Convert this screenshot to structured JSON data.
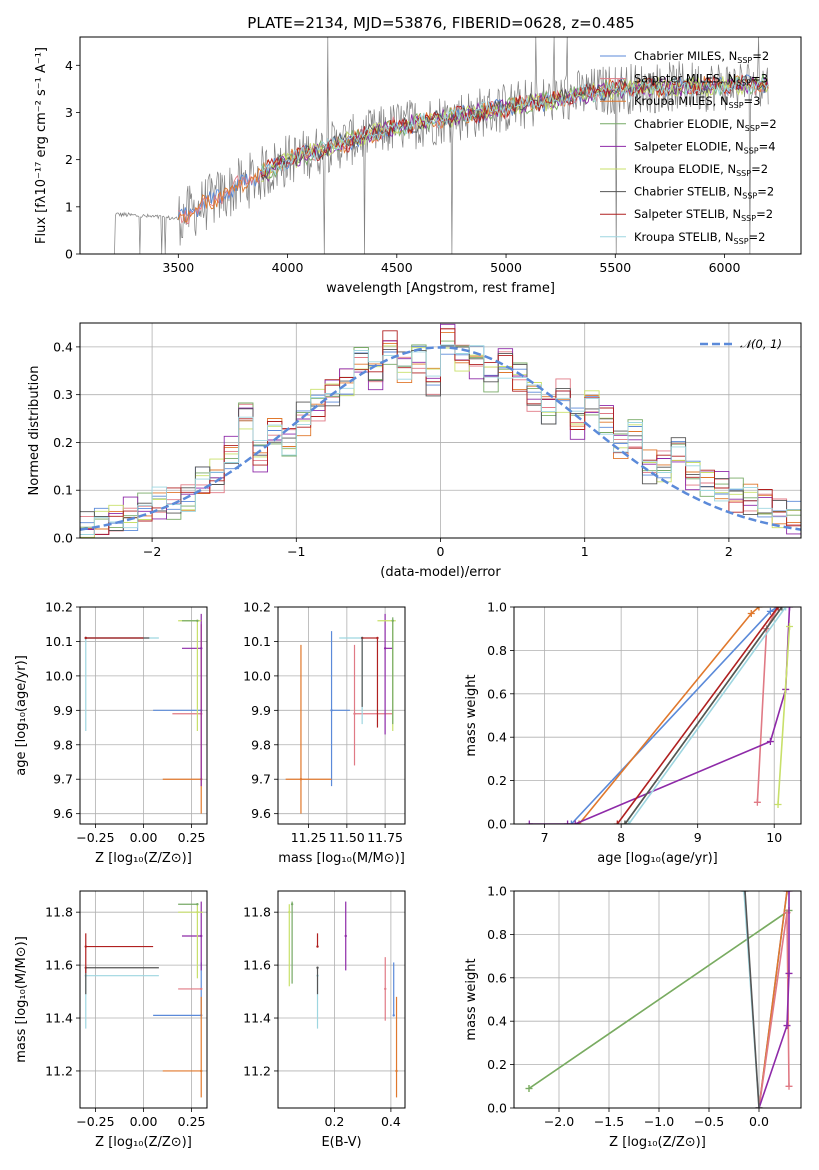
{
  "figure_title": "PLATE=2134, MJD=53876, FIBERID=0628, z=0.485",
  "series": [
    {
      "name": "Chabrier MILES",
      "nssp": "2",
      "color": "#5b8ad9"
    },
    {
      "name": "Salpeter MILES",
      "nssp": "3",
      "color": "#e07a85"
    },
    {
      "name": "Kroupa MILES",
      "nssp": "3",
      "color": "#e0782c"
    },
    {
      "name": "Chabrier ELODIE",
      "nssp": "2",
      "color": "#77aa66"
    },
    {
      "name": "Salpeter ELODIE",
      "nssp": "4",
      "color": "#8e2aa8"
    },
    {
      "name": "Kroupa ELODIE",
      "nssp": "2",
      "color": "#c8e06a"
    },
    {
      "name": "Chabrier STELIB",
      "nssp": "2",
      "color": "#555555"
    },
    {
      "name": "Salpeter STELIB",
      "nssp": "2",
      "color": "#b02020"
    },
    {
      "name": "Kroupa STELIB",
      "nssp": "2",
      "color": "#9ed6e0"
    }
  ],
  "panels": {
    "spectrum": {
      "xlabel": "wavelength [Angstrom, rest frame]",
      "ylabel": "Flux [fλ10⁻¹⁷ erg cm⁻² s⁻¹ A⁻¹]",
      "xticks": [
        "3500",
        "4000",
        "4500",
        "5000",
        "5500",
        "6000"
      ],
      "yticks": [
        "0",
        "1",
        "2",
        "3",
        "4"
      ]
    },
    "residual": {
      "xlabel": "(data-model)/error",
      "ylabel": "Normed distribution",
      "xticks": [
        "−2",
        "−1",
        "0",
        "1",
        "2"
      ],
      "yticks": [
        "0.0",
        "0.1",
        "0.2",
        "0.3",
        "0.4"
      ],
      "legend": "𝒩(0, 1)"
    },
    "age_z": {
      "xlabel": "Z [log₁₀(Z/Z⊙)]",
      "ylabel": "age  [log₁₀(age/yr)]",
      "xticks": [
        "−0.25",
        "0.00",
        "0.25"
      ],
      "yticks": [
        "9.6",
        "9.7",
        "9.8",
        "9.9",
        "10.0",
        "10.1",
        "10.2"
      ]
    },
    "age_mass": {
      "xlabel": "mass [log₁₀(M/M⊙)]",
      "xticks": [
        "11.25",
        "11.50",
        "11.75"
      ],
      "yticks": [
        "9.6",
        "9.7",
        "9.8",
        "9.9",
        "10.0",
        "10.1",
        "10.2"
      ]
    },
    "weight_age": {
      "xlabel": "age  [log₁₀(age/yr)]",
      "ylabel": "mass weight",
      "xticks": [
        "7",
        "8",
        "9",
        "10"
      ],
      "yticks": [
        "0.0",
        "0.2",
        "0.4",
        "0.6",
        "0.8",
        "1.0"
      ]
    },
    "mass_z": {
      "xlabel": "Z [log₁₀(Z/Z⊙)]",
      "ylabel": "mass [log₁₀(M/M⊙)]",
      "xticks": [
        "−0.25",
        "0.00",
        "0.25"
      ],
      "yticks": [
        "11.2",
        "11.4",
        "11.6",
        "11.8"
      ]
    },
    "mass_ebv": {
      "xlabel": "E(B-V)",
      "xticks": [
        "0.2",
        "0.4"
      ],
      "yticks": [
        "11.2",
        "11.4",
        "11.6",
        "11.8"
      ]
    },
    "weight_z": {
      "xlabel": "Z [log₁₀(Z/Z⊙)]",
      "ylabel": "mass weight",
      "xticks": [
        "−2.0",
        "−1.5",
        "−1.0",
        "−0.5",
        "0.0"
      ],
      "yticks": [
        "0.0",
        "0.2",
        "0.4",
        "0.6",
        "0.8",
        "1.0"
      ]
    }
  },
  "chart_data": [
    {
      "type": "line",
      "name": "spectrum",
      "title": "PLATE=2134, MJD=53876, FIBERID=0628, z=0.485",
      "xlim": [
        3050,
        6350
      ],
      "ylim": [
        0,
        4.6
      ],
      "model_trend": {
        "x": [
          3200,
          3500,
          4000,
          4500,
          5000,
          5500,
          6200
        ],
        "y": [
          0.85,
          0.75,
          2.0,
          2.7,
          3.1,
          3.5,
          3.6
        ]
      }
    },
    {
      "type": "line",
      "name": "residual",
      "xlim": [
        -2.5,
        2.5
      ],
      "ylim": [
        0,
        0.45
      ],
      "gaussian": {
        "mean": 0,
        "sigma": 1
      },
      "bin_edges": [
        -2.5,
        -2.4,
        -2.3,
        -2.2,
        -2.1,
        -2.0,
        -1.9,
        -1.8,
        -1.7,
        -1.6,
        -1.5,
        -1.4,
        -1.3,
        -1.2,
        -1.1,
        -1.0,
        -0.9,
        -0.8,
        -0.7,
        -0.6,
        -0.5,
        -0.4,
        -0.3,
        -0.2,
        -0.1,
        0.0,
        0.1,
        0.2,
        0.3,
        0.4,
        0.5,
        0.6,
        0.7,
        0.8,
        0.9,
        1.0,
        1.1,
        1.2,
        1.3,
        1.4,
        1.5,
        1.6,
        1.7,
        1.8,
        1.9,
        2.0,
        2.1,
        2.2,
        2.3,
        2.4,
        2.5
      ],
      "hist_values": [
        0.02,
        0.03,
        0.04,
        0.05,
        0.06,
        0.07,
        0.07,
        0.08,
        0.12,
        0.13,
        0.18,
        0.26,
        0.17,
        0.22,
        0.2,
        0.25,
        0.28,
        0.31,
        0.33,
        0.37,
        0.34,
        0.4,
        0.36,
        0.38,
        0.33,
        0.42,
        0.38,
        0.37,
        0.34,
        0.37,
        0.34,
        0.3,
        0.27,
        0.3,
        0.24,
        0.28,
        0.25,
        0.2,
        0.22,
        0.15,
        0.15,
        0.18,
        0.13,
        0.12,
        0.11,
        0.09,
        0.08,
        0.07,
        0.05,
        0.04
      ]
    },
    {
      "type": "scatter",
      "name": "age_vs_Z",
      "xlim": [
        -0.33,
        0.33
      ],
      "ylim": [
        9.57,
        10.2
      ],
      "points": [
        {
          "s": "Chabrier MILES",
          "x": 0.3,
          "y": 9.9,
          "xerr": [
            0.25,
            0.0
          ]
        },
        {
          "s": "Kroupa MILES",
          "x": 0.3,
          "y": 9.7,
          "xerr": [
            0.2,
            0.0
          ],
          "yerr": [
            0.1,
            0.45
          ]
        },
        {
          "s": "Salpeter MILES",
          "x": 0.3,
          "y": 9.89,
          "xerr": [
            0.15,
            0.0
          ]
        },
        {
          "s": "Salpeter ELODIE",
          "x": 0.3,
          "y": 10.08,
          "xerr": [
            0.1,
            0.0
          ],
          "yerr": [
            0.4,
            0.1
          ]
        },
        {
          "s": "Kroupa ELODIE",
          "x": 0.28,
          "y": 10.16,
          "xerr": [
            0.1,
            0.02
          ],
          "yerr": [
            0.32,
            0.0
          ]
        },
        {
          "s": "Chabrier ELODIE",
          "x": 0.28,
          "y": 10.16,
          "xerr": [
            0.08,
            0.0
          ]
        },
        {
          "s": "Kroupa STELIB",
          "x": -0.3,
          "y": 10.11,
          "xerr": [
            0.0,
            0.38
          ],
          "yerr": [
            0.27,
            0.0
          ]
        },
        {
          "s": "Chabrier STELIB",
          "x": -0.3,
          "y": 10.11,
          "xerr": [
            0.0,
            0.33
          ]
        },
        {
          "s": "Salpeter STELIB",
          "x": -0.3,
          "y": 10.11,
          "xerr": [
            0.0,
            0.3
          ]
        }
      ]
    },
    {
      "type": "scatter",
      "name": "age_vs_mass",
      "xlim": [
        11.05,
        11.88
      ],
      "ylim": [
        9.57,
        10.2
      ],
      "points": [
        {
          "s": "Chabrier MILES",
          "x": 11.4,
          "y": 9.9,
          "xerr": [
            0.0,
            0.12
          ],
          "yerr": [
            0.22,
            0.23
          ]
        },
        {
          "s": "Kroupa MILES",
          "x": 11.2,
          "y": 9.7,
          "xerr": [
            0.1,
            0.2
          ],
          "yerr": [
            0.1,
            0.39
          ]
        },
        {
          "s": "Salpeter MILES",
          "x": 11.55,
          "y": 9.89,
          "xerr": [
            0.0,
            0.25
          ],
          "yerr": [
            0.15,
            0.2
          ]
        },
        {
          "s": "Salpeter ELODIE",
          "x": 11.75,
          "y": 10.08,
          "xerr": [
            0.0,
            0.05
          ],
          "yerr": [
            0.25,
            0.1
          ]
        },
        {
          "s": "Kroupa ELODIE",
          "x": 11.8,
          "y": 10.16,
          "xerr": [
            0.1,
            0.02
          ],
          "yerr": [
            0.32,
            0.0
          ]
        },
        {
          "s": "Chabrier ELODIE",
          "x": 11.8,
          "y": 10.16,
          "xerr": [
            0.0,
            0.0
          ],
          "yerr": [
            0.3,
            0.01
          ]
        },
        {
          "s": "Kroupa STELIB",
          "x": 11.6,
          "y": 10.11,
          "xerr": [
            0.15,
            0.0
          ],
          "yerr": [
            0.25,
            0.0
          ]
        },
        {
          "s": "Chabrier STELIB",
          "x": 11.6,
          "y": 10.11,
          "xerr": [
            0.0,
            0.0
          ],
          "yerr": [
            0.2,
            0.0
          ]
        },
        {
          "s": "Salpeter STELIB",
          "x": 11.7,
          "y": 10.11,
          "xerr": [
            0.1,
            0.0
          ],
          "yerr": [
            0.26,
            0.0
          ]
        }
      ]
    },
    {
      "type": "line",
      "name": "mass_weight_vs_age",
      "xlim": [
        6.6,
        10.35
      ],
      "ylim": [
        0,
        1
      ],
      "lines": [
        {
          "s": "Chabrier MILES",
          "x": [
            7.35,
            9.95,
            10.05
          ],
          "y": [
            0.0,
            0.98,
            1.0
          ]
        },
        {
          "s": "Kroupa MILES",
          "x": [
            7.45,
            9.7,
            9.8
          ],
          "y": [
            0.0,
            0.97,
            1.0
          ]
        },
        {
          "s": "Salpeter MILES",
          "x": [
            9.78,
            9.9,
            10.05
          ],
          "y": [
            0.1,
            0.9,
            1.0
          ]
        },
        {
          "s": "Salpeter ELODIE",
          "x": [
            6.8,
            7.3,
            7.4,
            9.95,
            10.15,
            10.2
          ],
          "y": [
            0.0,
            0.0,
            0.0,
            0.38,
            0.62,
            1.0
          ]
        },
        {
          "s": "Kroupa ELODIE",
          "x": [
            10.05,
            10.2
          ],
          "y": [
            0.09,
            0.91
          ]
        },
        {
          "s": "Chabrier ELODIE",
          "x": [
            8.05,
            10.1
          ],
          "y": [
            0.0,
            1.0
          ]
        },
        {
          "s": "Chabrier STELIB",
          "x": [
            8.05,
            10.1
          ],
          "y": [
            0.0,
            1.0
          ]
        },
        {
          "s": "Salpeter STELIB",
          "x": [
            7.95,
            10.05
          ],
          "y": [
            0.0,
            1.0
          ]
        },
        {
          "s": "Kroupa STELIB",
          "x": [
            8.1,
            10.15
          ],
          "y": [
            0.0,
            1.0
          ]
        }
      ]
    },
    {
      "type": "scatter",
      "name": "mass_vs_Z",
      "xlim": [
        -0.33,
        0.33
      ],
      "ylim": [
        11.06,
        11.88
      ],
      "points": [
        {
          "s": "Chabrier MILES",
          "x": 0.3,
          "y": 11.41,
          "xerr": [
            0.25,
            0.0
          ],
          "yerr": [
            0.0,
            0.2
          ]
        },
        {
          "s": "Kroupa MILES",
          "x": 0.3,
          "y": 11.2,
          "xerr": [
            0.2,
            0.0
          ],
          "yerr": [
            0.1,
            0.28
          ]
        },
        {
          "s": "Salpeter MILES",
          "x": 0.3,
          "y": 11.51,
          "xerr": [
            0.12,
            0.0
          ]
        },
        {
          "s": "Salpeter ELODIE",
          "x": 0.3,
          "y": 11.71,
          "xerr": [
            0.1,
            0.0
          ],
          "yerr": [
            0.13,
            0.13
          ]
        },
        {
          "s": "Kroupa ELODIE",
          "x": 0.28,
          "y": 11.8,
          "xerr": [
            0.1,
            0.03
          ],
          "yerr": [
            0.25,
            0.03
          ]
        },
        {
          "s": "Chabrier ELODIE",
          "x": 0.28,
          "y": 11.83,
          "xerr": [
            0.1,
            0.0
          ]
        },
        {
          "s": "Kroupa STELIB",
          "x": -0.3,
          "y": 11.56,
          "xerr": [
            0.0,
            0.38
          ],
          "yerr": [
            0.2,
            0.0
          ]
        },
        {
          "s": "Chabrier STELIB",
          "x": -0.3,
          "y": 11.59,
          "xerr": [
            0.0,
            0.38
          ],
          "yerr": [
            0.1,
            0.0
          ]
        },
        {
          "s": "Salpeter STELIB",
          "x": -0.3,
          "y": 11.67,
          "xerr": [
            0.0,
            0.35
          ],
          "yerr": [
            0.1,
            0.05
          ]
        }
      ]
    },
    {
      "type": "scatter",
      "name": "mass_vs_EBV",
      "xlim": [
        0.0,
        0.45
      ],
      "ylim": [
        11.06,
        11.88
      ],
      "points": [
        {
          "s": "Chabrier MILES",
          "x": 0.41,
          "y": 11.41,
          "yerr": [
            0.0,
            0.2
          ]
        },
        {
          "s": "Kroupa MILES",
          "x": 0.42,
          "y": 11.2,
          "yerr": [
            0.1,
            0.28
          ]
        },
        {
          "s": "Salpeter MILES",
          "x": 0.38,
          "y": 11.51,
          "yerr": [
            0.12,
            0.12
          ]
        },
        {
          "s": "Salpeter ELODIE",
          "x": 0.24,
          "y": 11.71,
          "yerr": [
            0.13,
            0.13
          ]
        },
        {
          "s": "Kroupa ELODIE",
          "x": 0.04,
          "y": 11.8,
          "yerr": [
            0.28,
            0.03
          ]
        },
        {
          "s": "Chabrier ELODIE",
          "x": 0.05,
          "y": 11.83,
          "yerr": [
            0.3,
            0.01
          ]
        },
        {
          "s": "Kroupa STELIB",
          "x": 0.14,
          "y": 11.56,
          "yerr": [
            0.2,
            0.0
          ]
        },
        {
          "s": "Chabrier STELIB",
          "x": 0.14,
          "y": 11.59,
          "yerr": [
            0.1,
            0.0
          ]
        },
        {
          "s": "Salpeter STELIB",
          "x": 0.14,
          "y": 11.67,
          "yerr": [
            0.0,
            0.05
          ]
        }
      ]
    },
    {
      "type": "line",
      "name": "mass_weight_vs_Z",
      "xlim": [
        -2.45,
        0.42
      ],
      "ylim": [
        0,
        1
      ],
      "lines": [
        {
          "s": "Kroupa ELODIE",
          "x": [
            -2.3,
            0.3
          ],
          "y": [
            0.09,
            0.91
          ]
        },
        {
          "s": "Chabrier ELODIE",
          "x": [
            -2.3,
            0.3
          ],
          "y": [
            0.09,
            0.91
          ]
        },
        {
          "s": "Chabrier MILES",
          "x": [
            0.0,
            0.28
          ],
          "y": [
            0.0,
            1.0
          ]
        },
        {
          "s": "Kroupa MILES",
          "x": [
            0.0,
            0.28
          ],
          "y": [
            0.0,
            1.0
          ]
        },
        {
          "s": "Salpeter MILES",
          "x": [
            0.0,
            0.28,
            0.3
          ],
          "y": [
            0.0,
            0.9,
            0.1
          ]
        },
        {
          "s": "Salpeter ELODIE",
          "x": [
            0.0,
            0.28,
            0.3,
            0.3
          ],
          "y": [
            0.0,
            0.38,
            0.62,
            1.0
          ]
        },
        {
          "s": "Kroupa STELIB",
          "x": [
            -0.15,
            0.0
          ],
          "y": [
            1.0,
            0.0
          ]
        },
        {
          "s": "Chabrier STELIB",
          "x": [
            -0.14,
            0.0
          ],
          "y": [
            1.0,
            0.0
          ]
        }
      ]
    }
  ]
}
